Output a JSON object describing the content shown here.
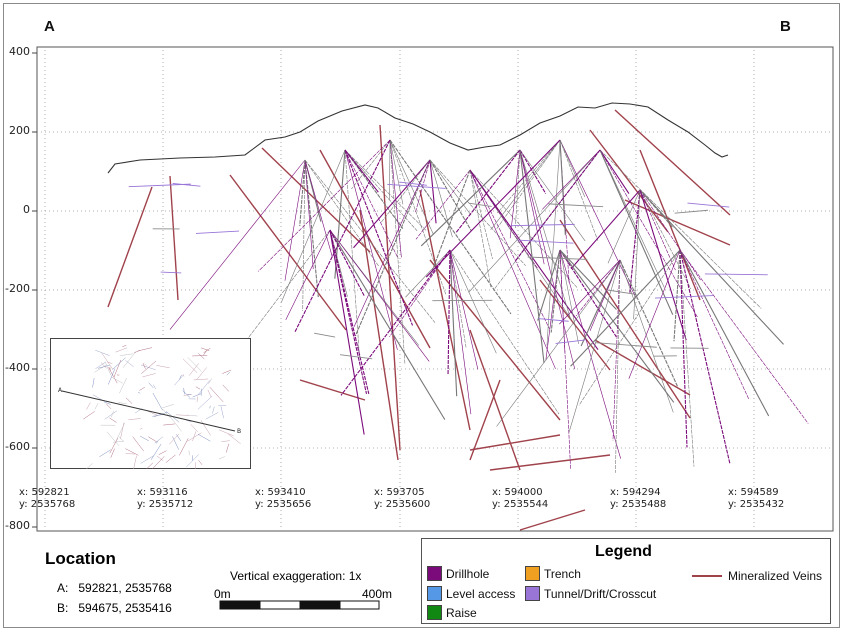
{
  "section": {
    "end_a": "A",
    "end_b": "B",
    "y_axis_ticks": [
      "400",
      "200",
      "0",
      "-200",
      "-400",
      "-600",
      "-800"
    ],
    "coordinates": [
      {
        "x": "x: 592821",
        "y": "y: 2535768"
      },
      {
        "x": "x: 593116",
        "y": "y: 2535712"
      },
      {
        "x": "x: 593410",
        "y": "y: 2535656"
      },
      {
        "x": "x: 593705",
        "y": "y: 2535600"
      },
      {
        "x": "x: 594000",
        "y": "y: 2535544"
      },
      {
        "x": "x: 594294",
        "y": "y: 2535488"
      },
      {
        "x": "x: 594589",
        "y": "y: 2535432"
      }
    ],
    "grid": true,
    "inset_labels": [
      "A",
      "B"
    ]
  },
  "location": {
    "title": "Location",
    "a_label": "A:",
    "a_value": "592821, 2535768",
    "b_label": "B:",
    "b_value": "594675, 2535416"
  },
  "scale": {
    "vertical_exaggeration": "Vertical exaggeration: 1x",
    "start_label": "0m",
    "end_label": "400m"
  },
  "legend": {
    "title": "Legend",
    "items": [
      {
        "label": "Drillhole",
        "color": "#7b0a7b"
      },
      {
        "label": "Level access",
        "color": "#5599e6"
      },
      {
        "label": "Raise",
        "color": "#118811"
      },
      {
        "label": "Trench",
        "color": "#f0a020"
      },
      {
        "label": "Tunnel/Drift/Crosscut",
        "color": "#9975d8"
      },
      {
        "label": "Mineralized Veins",
        "color": "#a0424b"
      }
    ]
  }
}
